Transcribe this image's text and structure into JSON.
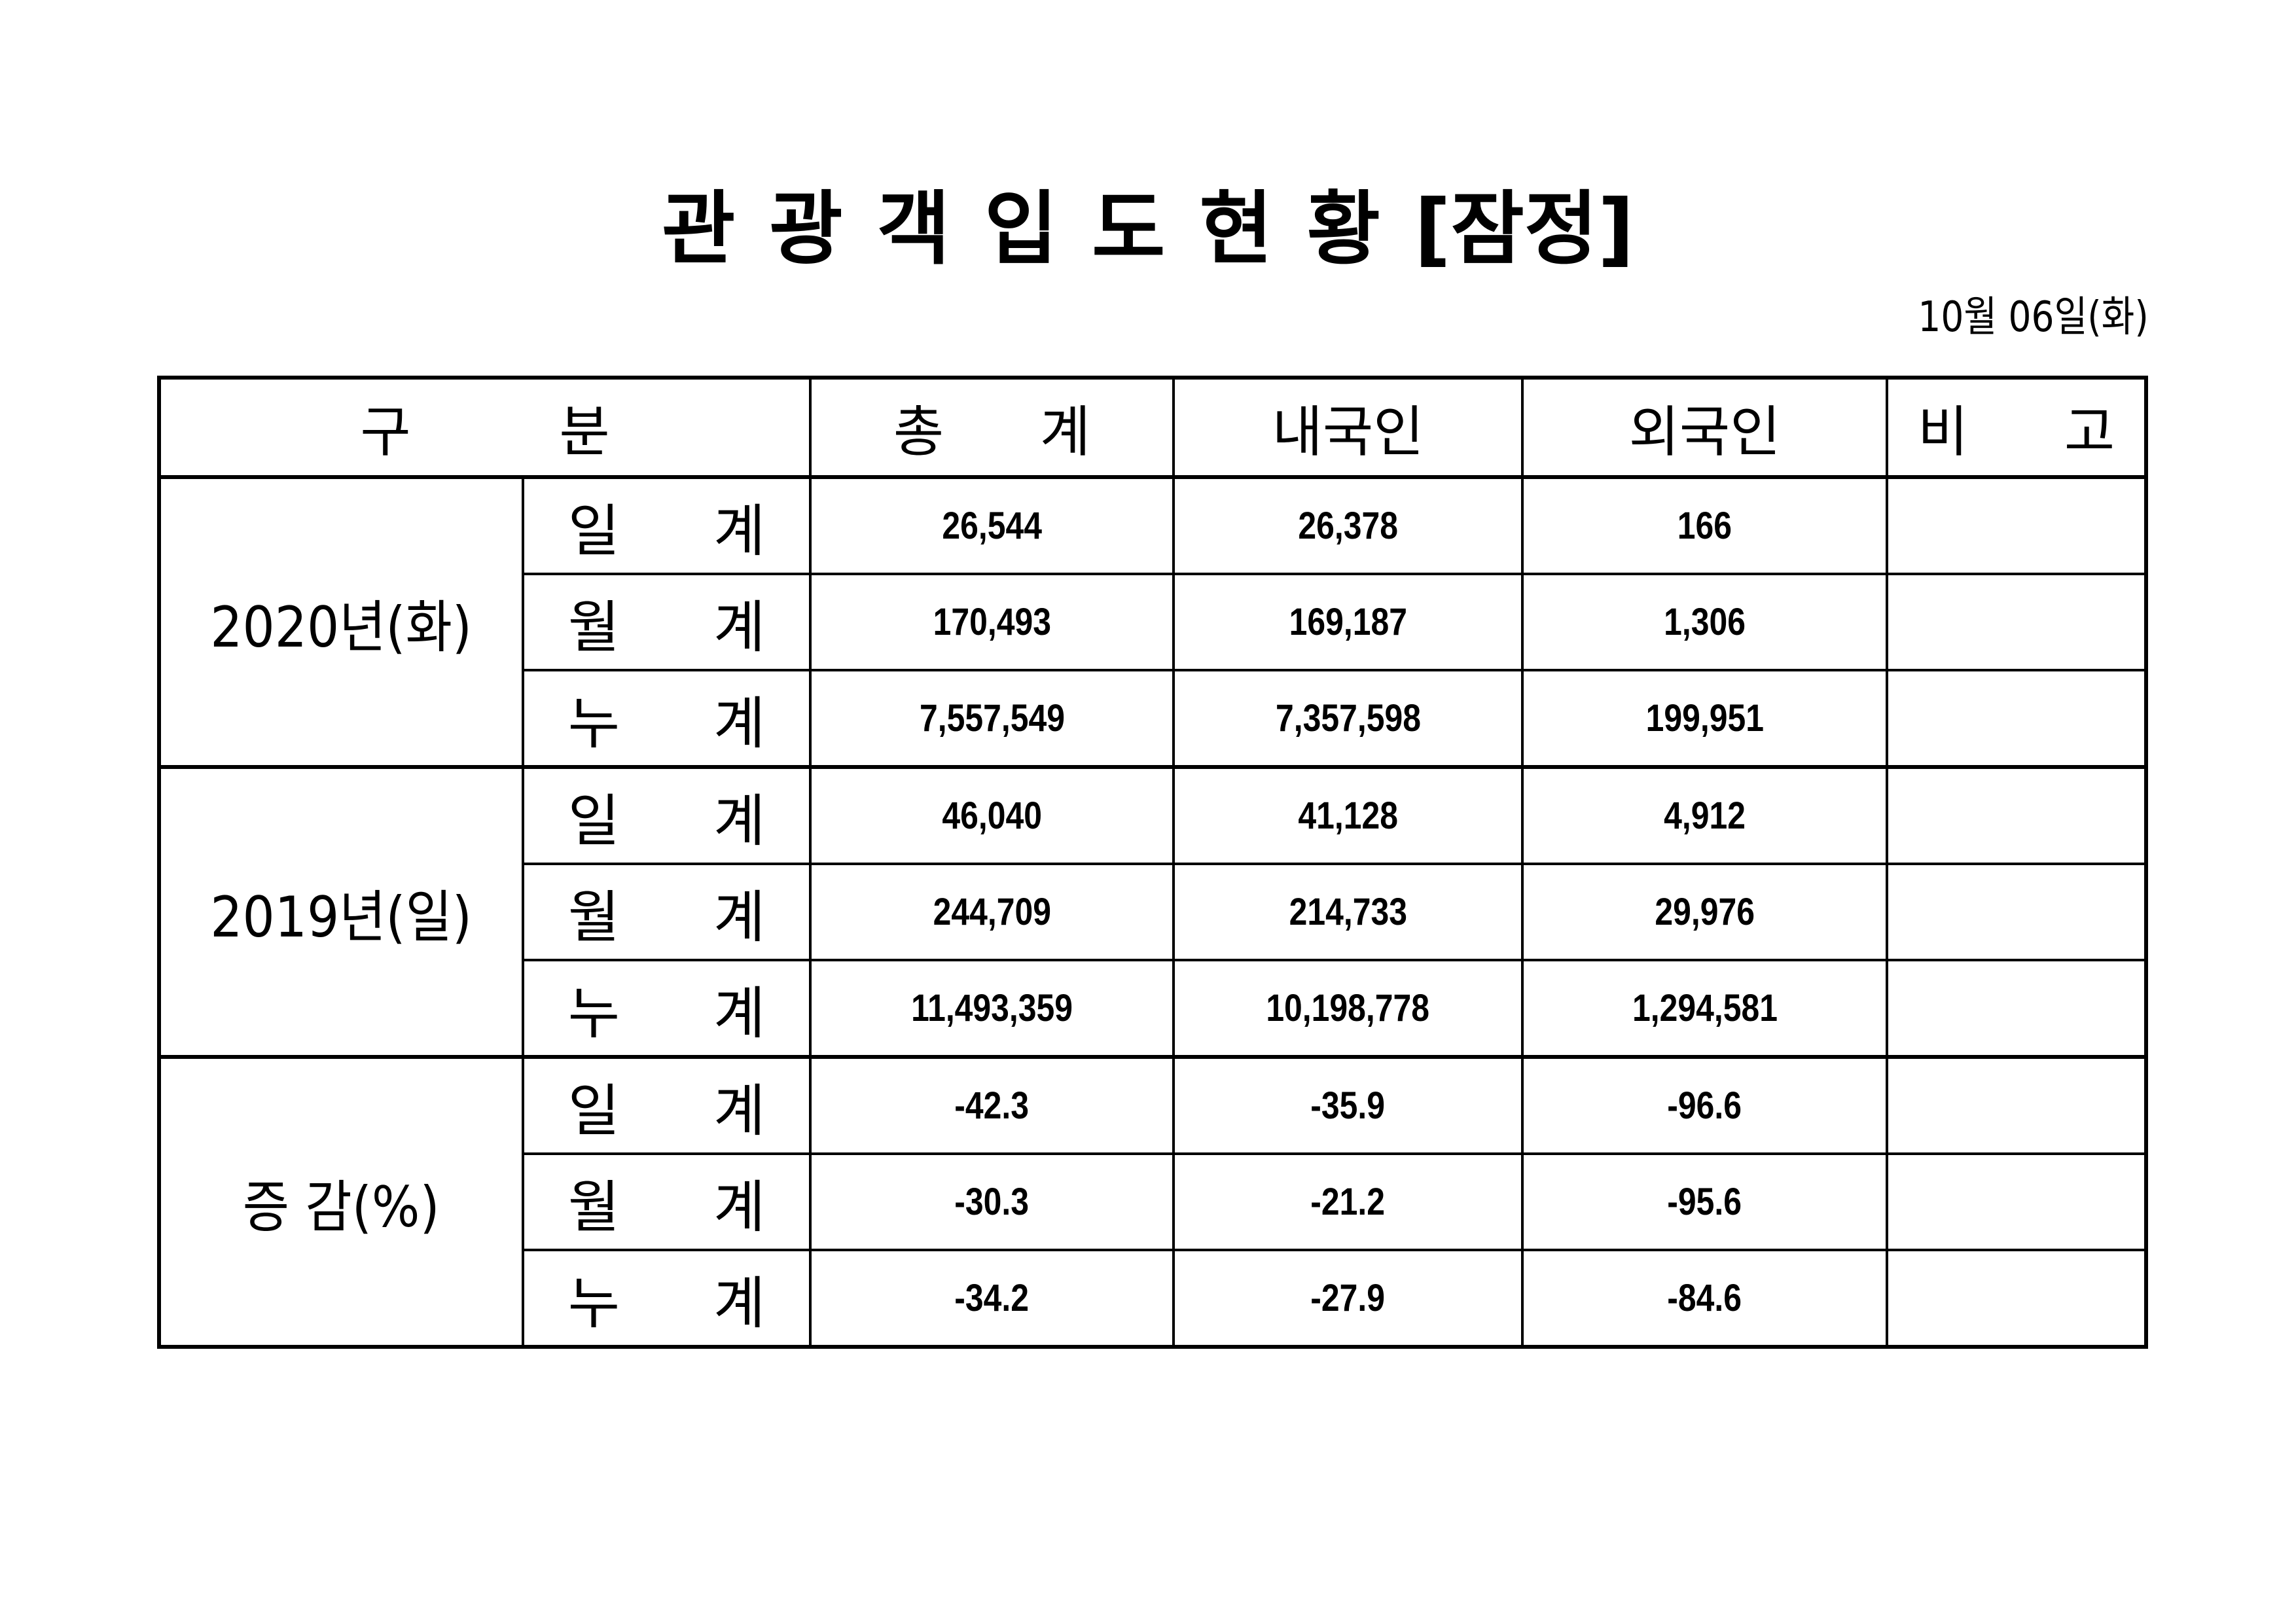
{
  "document": {
    "title_chars": [
      "관",
      "광",
      "객",
      "입",
      "도",
      "현",
      "황",
      "[잠정]"
    ],
    "title": "관광객입도현황 [잠정]",
    "date": "10월  06일(화)"
  },
  "table": {
    "headers": {
      "category": "구 분",
      "total": "총 계",
      "domestic": "내국인",
      "foreign": "외국인",
      "remarks": "비 고"
    },
    "sub_labels": {
      "daily": "일 계",
      "monthly": "월 계",
      "cumulative": "누 계"
    },
    "groups": [
      {
        "label": "2020년(화)",
        "rows": [
          {
            "type": "일 계",
            "total": "26,544",
            "domestic": "26,378",
            "foreign": "166",
            "remarks": ""
          },
          {
            "type": "월 계",
            "total": "170,493",
            "domestic": "169,187",
            "foreign": "1,306",
            "remarks": ""
          },
          {
            "type": "누 계",
            "total": "7,557,549",
            "domestic": "7,357,598",
            "foreign": "199,951",
            "remarks": ""
          }
        ]
      },
      {
        "label": "2019년(일)",
        "rows": [
          {
            "type": "일 계",
            "total": "46,040",
            "domestic": "41,128",
            "foreign": "4,912",
            "remarks": ""
          },
          {
            "type": "월 계",
            "total": "244,709",
            "domestic": "214,733",
            "foreign": "29,976",
            "remarks": ""
          },
          {
            "type": "누 계",
            "total": "11,493,359",
            "domestic": "10,198,778",
            "foreign": "1,294,581",
            "remarks": ""
          }
        ]
      },
      {
        "label": "증 감(%)",
        "rows": [
          {
            "type": "일 계",
            "total": "-42.3",
            "domestic": "-35.9",
            "foreign": "-96.6",
            "remarks": ""
          },
          {
            "type": "월 계",
            "total": "-30.3",
            "domestic": "-21.2",
            "foreign": "-95.6",
            "remarks": ""
          },
          {
            "type": "누 계",
            "total": "-34.2",
            "domestic": "-27.9",
            "foreign": "-84.6",
            "remarks": ""
          }
        ]
      }
    ]
  }
}
